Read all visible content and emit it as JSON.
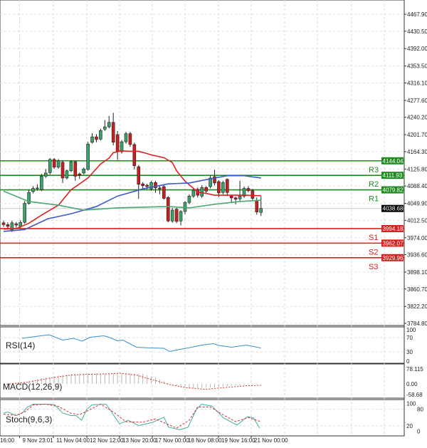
{
  "chart_data": {
    "type": "candlestick",
    "price_axis": {
      "ticks": [
        "4467.90",
        "4430.50",
        "4392.00",
        "4353.50",
        "4316.10",
        "4277.60",
        "4240.20",
        "4201.70",
        "4164.30",
        "4125.80",
        "4088.40",
        "4049.90",
        "4012.50",
        "3974.00",
        "3936.60",
        "3898.10",
        "3860.70",
        "3822.20",
        "3784.80"
      ],
      "ylim": [
        3784.8,
        4467.9
      ]
    },
    "time_axis": [
      "16:00",
      "9 Nov 23:01",
      "11 Nov 04:00",
      "12 Nov 12:00",
      "13 Nov 20:00",
      "17 Nov 00:00",
      "18 Nov 08:00",
      "19 Nov 16:00",
      "21 Nov 00:00"
    ],
    "candles_ohlc": [
      [
        4007,
        4012,
        3998,
        4003
      ],
      [
        4003,
        4008,
        3993,
        3999
      ],
      [
        3991,
        4012,
        3987,
        4007
      ],
      [
        4005,
        4009,
        3996,
        4002
      ],
      [
        3999,
        4013,
        3995,
        4008
      ],
      [
        4008,
        4055,
        4005,
        4050
      ],
      [
        4050,
        4080,
        4047,
        4074
      ],
      [
        4076,
        4088,
        4072,
        4083
      ],
      [
        4083,
        4092,
        4078,
        4084
      ],
      [
        4080,
        4115,
        4077,
        4110
      ],
      [
        4110,
        4126,
        4106,
        4117
      ],
      [
        4118,
        4150,
        4114,
        4147
      ],
      [
        4147,
        4150,
        4126,
        4130
      ],
      [
        4130,
        4148,
        4126,
        4144
      ],
      [
        4141,
        4145,
        4095,
        4106
      ],
      [
        4106,
        4125,
        4103,
        4122
      ],
      [
        4122,
        4145,
        4119,
        4142
      ],
      [
        4142,
        4144,
        4100,
        4110
      ],
      [
        4115,
        4118,
        4104,
        4112
      ],
      [
        4117,
        4129,
        4114,
        4126
      ],
      [
        4125,
        4186,
        4122,
        4181
      ],
      [
        4185,
        4205,
        4182,
        4197
      ],
      [
        4197,
        4203,
        4185,
        4191
      ],
      [
        4192,
        4215,
        4189,
        4211
      ],
      [
        4214,
        4234,
        4210,
        4219
      ],
      [
        4219,
        4243,
        4216,
        4229
      ],
      [
        4229,
        4250,
        4178,
        4185
      ],
      [
        4202,
        4210,
        4146,
        4164
      ],
      [
        4164,
        4190,
        4160,
        4186
      ],
      [
        4186,
        4208,
        4182,
        4204
      ],
      [
        4204,
        4208,
        4175,
        4180
      ],
      [
        4180,
        4184,
        4125,
        4133
      ],
      [
        4131,
        4135,
        4060,
        4092
      ],
      [
        4093,
        4097,
        4082,
        4089
      ],
      [
        4090,
        4093,
        4081,
        4087
      ],
      [
        4082,
        4100,
        4078,
        4096
      ],
      [
        4096,
        4100,
        4073,
        4084
      ],
      [
        4084,
        4088,
        4070,
        4082
      ],
      [
        4087,
        4090,
        4058,
        4061
      ],
      [
        4063,
        4066,
        4008,
        4011
      ],
      [
        4011,
        4040,
        4007,
        4035
      ],
      [
        4037,
        4040,
        4006,
        4010
      ],
      [
        4011,
        4035,
        4001,
        4032
      ],
      [
        4032,
        4055,
        4026,
        4052
      ],
      [
        4052,
        4070,
        4048,
        4066
      ],
      [
        4066,
        4083,
        4062,
        4079
      ],
      [
        4081,
        4085,
        4063,
        4068
      ],
      [
        4066,
        4090,
        4062,
        4085
      ],
      [
        4085,
        4088,
        4072,
        4077
      ],
      [
        4087,
        4112,
        4083,
        4106
      ],
      [
        4109,
        4124,
        4090,
        4095
      ],
      [
        4098,
        4101,
        4064,
        4073
      ],
      [
        4074,
        4100,
        4070,
        4096
      ],
      [
        4103,
        4105,
        4066,
        4074
      ],
      [
        4066,
        4069,
        4052,
        4062
      ],
      [
        4062,
        4065,
        4048,
        4059
      ],
      [
        4060,
        4100,
        4055,
        4066
      ],
      [
        4066,
        4087,
        4062,
        4083
      ],
      [
        4083,
        4088,
        4074,
        4078
      ],
      [
        4078,
        4082,
        4056,
        4061
      ],
      [
        4056,
        4063,
        4025,
        4031
      ],
      [
        4030,
        4066,
        4022,
        4038.68
      ]
    ],
    "moving_averages": [
      {
        "color": "#e02020",
        "points": [
          [
            0,
            3993
          ],
          [
            3,
            3994
          ],
          [
            6,
            4006
          ],
          [
            9,
            4024
          ],
          [
            13,
            4046
          ],
          [
            16,
            4080
          ],
          [
            20,
            4106
          ],
          [
            23,
            4137
          ],
          [
            25,
            4150
          ],
          [
            26,
            4162
          ],
          [
            28,
            4166
          ],
          [
            30,
            4165
          ],
          [
            32,
            4165
          ],
          [
            34,
            4160
          ],
          [
            35,
            4157
          ],
          [
            38,
            4151
          ],
          [
            40,
            4140
          ],
          [
            41,
            4122
          ],
          [
            43,
            4099
          ],
          [
            45,
            4083
          ],
          [
            46,
            4075
          ],
          [
            48,
            4072
          ],
          [
            50,
            4068
          ],
          [
            53,
            4068
          ],
          [
            57,
            4068
          ],
          [
            60,
            4067
          ],
          [
            61,
            4067
          ]
        ]
      },
      {
        "color": "#3c5ac8",
        "points": [
          [
            0,
            3988
          ],
          [
            5,
            3992
          ],
          [
            10.5,
            4016
          ],
          [
            16,
            4027
          ],
          [
            22,
            4043
          ],
          [
            27,
            4066
          ],
          [
            33,
            4082
          ],
          [
            39,
            4093
          ],
          [
            44,
            4095
          ],
          [
            50,
            4106
          ],
          [
            53,
            4111
          ],
          [
            57,
            4111
          ],
          [
            61,
            4106
          ]
        ]
      },
      {
        "color": "#4aa870",
        "points": [
          [
            0,
            4077
          ],
          [
            6,
            4054
          ],
          [
            13,
            4046
          ],
          [
            19,
            4035
          ],
          [
            27,
            4040
          ],
          [
            39,
            4043
          ],
          [
            44,
            4040
          ],
          [
            50,
            4048
          ],
          [
            56,
            4054
          ],
          [
            61,
            4057
          ]
        ]
      }
    ],
    "pivots": [
      {
        "name": "R3",
        "value": "4144.04",
        "price": 4144.04,
        "color": "#1e8c1e"
      },
      {
        "name": "R2",
        "value": "4111.93",
        "price": 4111.93,
        "color": "#1e8c1e"
      },
      {
        "name": "R1",
        "value": "4079.82",
        "price": 4079.82,
        "color": "#1e8c1e"
      },
      {
        "name": "S1",
        "value": "3994.18",
        "price": 3994.18,
        "color": "#d62020"
      },
      {
        "name": "S2",
        "value": "3962.07",
        "price": 3962.07,
        "color": "#d62020"
      },
      {
        "name": "S3",
        "value": "3929.96",
        "price": 3929.96,
        "color": "#d62020"
      }
    ],
    "current_price": {
      "value": "4038.68",
      "price": 4038.68
    },
    "rsi": {
      "label": "RSI(14)",
      "ticks": [
        "100",
        "70",
        "30",
        "0"
      ],
      "color": "#3a8fc8",
      "points": [
        [
          4.4,
          68
        ],
        [
          8.8,
          75
        ],
        [
          10.8,
          78
        ],
        [
          14,
          63
        ],
        [
          16.6,
          68
        ],
        [
          18.6,
          60
        ],
        [
          20.5,
          71
        ],
        [
          23.7,
          75
        ],
        [
          25,
          71
        ],
        [
          27,
          61
        ],
        [
          28.3,
          63
        ],
        [
          31.5,
          43
        ],
        [
          34.7,
          41
        ],
        [
          38,
          40
        ],
        [
          39.3,
          31
        ],
        [
          41.4,
          36
        ],
        [
          44.6,
          43
        ],
        [
          47,
          49
        ],
        [
          49.7,
          53
        ],
        [
          51,
          48
        ],
        [
          54,
          43
        ],
        [
          57.5,
          49
        ],
        [
          61,
          41
        ]
      ]
    },
    "macd": {
      "label": "MACD(12,26,9)",
      "ticks": [
        "78.115",
        "0.00",
        "-58.68"
      ],
      "histogram": [
        [
          0,
          -3
        ],
        [
          5,
          10
        ],
        [
          10,
          30
        ],
        [
          15,
          45
        ],
        [
          20,
          50
        ],
        [
          25,
          50
        ],
        [
          30,
          52
        ],
        [
          33,
          48
        ],
        [
          36,
          30
        ],
        [
          39,
          5
        ],
        [
          42,
          -15
        ],
        [
          45,
          -20
        ],
        [
          48,
          -18
        ],
        [
          51,
          -15
        ],
        [
          55,
          -8
        ],
        [
          58,
          -5
        ],
        [
          61,
          -3
        ]
      ],
      "signal": [
        [
          0,
          -3
        ],
        [
          5.6,
          8
        ],
        [
          12,
          31
        ],
        [
          16,
          42
        ],
        [
          18.6,
          45
        ],
        [
          25,
          48
        ],
        [
          27.6,
          51
        ],
        [
          31.5,
          42
        ],
        [
          35.4,
          19
        ],
        [
          39.3,
          -3
        ],
        [
          43.2,
          -18
        ],
        [
          47.8,
          -26
        ],
        [
          51,
          -20
        ],
        [
          57.5,
          -9
        ],
        [
          61,
          -7
        ]
      ]
    },
    "stoch": {
      "label": "Stoch(9,6,3)",
      "ticks": [
        "100",
        "80",
        "20",
        "0"
      ],
      "main": [
        [
          0,
          66
        ],
        [
          1,
          70
        ],
        [
          3,
          57
        ],
        [
          4.4,
          66
        ],
        [
          5.6,
          87
        ],
        [
          7,
          98
        ],
        [
          8.3,
          98
        ],
        [
          10.8,
          98
        ],
        [
          12.1,
          96
        ],
        [
          14,
          66
        ],
        [
          16,
          57
        ],
        [
          17.2,
          57
        ],
        [
          18.5,
          40
        ],
        [
          19.7,
          79
        ],
        [
          21,
          96
        ],
        [
          24.3,
          98
        ],
        [
          27.5,
          27
        ],
        [
          29.5,
          40
        ],
        [
          32,
          21
        ],
        [
          35.2,
          32
        ],
        [
          38,
          51
        ],
        [
          39.1,
          15
        ],
        [
          41.8,
          6
        ],
        [
          43.7,
          15
        ],
        [
          45.7,
          79
        ],
        [
          46.9,
          98
        ],
        [
          49.4,
          91
        ],
        [
          52.1,
          49
        ],
        [
          55.3,
          23
        ],
        [
          57.8,
          53
        ],
        [
          59.2,
          49
        ],
        [
          60.7,
          12
        ]
      ],
      "signal": [
        [
          0,
          62
        ],
        [
          3,
          58
        ],
        [
          5,
          70
        ],
        [
          7,
          95
        ],
        [
          10,
          98
        ],
        [
          13,
          90
        ],
        [
          16,
          65
        ],
        [
          18,
          60
        ],
        [
          20,
          75
        ],
        [
          23,
          98
        ],
        [
          26,
          70
        ],
        [
          29,
          35
        ],
        [
          33,
          33
        ],
        [
          36,
          45
        ],
        [
          39,
          25
        ],
        [
          41,
          12
        ],
        [
          44,
          40
        ],
        [
          46,
          88
        ],
        [
          49,
          88
        ],
        [
          52,
          60
        ],
        [
          55,
          35
        ],
        [
          58,
          50
        ],
        [
          61,
          35
        ]
      ]
    }
  }
}
